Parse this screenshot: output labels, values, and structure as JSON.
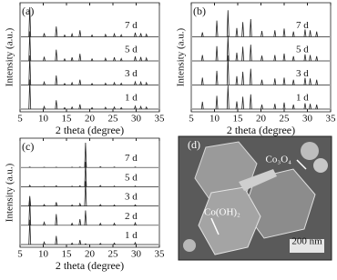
{
  "chart_data": [
    {
      "type": "line",
      "panel_label": "(a)",
      "xlabel": "2 theta (degree)",
      "ylabel": "Intensity (a.u.)",
      "xlim": [
        5,
        35
      ],
      "xticks": [
        5,
        10,
        15,
        20,
        25,
        30,
        35
      ],
      "ylim": [
        0,
        100
      ],
      "x": [
        7.1,
        10.2,
        12.8,
        14.6,
        16.2,
        17.9,
        20.5,
        23.4,
        25.3,
        26.8,
        29.8,
        31.0,
        32.2
      ],
      "series": [
        {
          "name": "7 d",
          "color": "#222",
          "values": [
            100,
            12,
            35,
            6,
            10,
            22,
            6,
            8,
            10,
            7,
            14,
            12,
            9
          ]
        },
        {
          "name": "5 d",
          "color": "#222",
          "values": [
            100,
            14,
            38,
            7,
            12,
            24,
            7,
            9,
            12,
            8,
            15,
            13,
            10
          ]
        },
        {
          "name": "3 d",
          "color": "#222",
          "values": [
            100,
            10,
            32,
            5,
            8,
            18,
            5,
            6,
            8,
            6,
            11,
            10,
            8
          ]
        },
        {
          "name": "1 d",
          "color": "#222",
          "values": [
            100,
            9,
            30,
            5,
            7,
            16,
            5,
            6,
            7,
            5,
            10,
            9,
            7
          ]
        }
      ]
    },
    {
      "type": "line",
      "panel_label": "(b)",
      "xlabel": "2 theta (degree)",
      "ylabel": "Intensity (a.u.)",
      "xlim": [
        5,
        35
      ],
      "xticks": [
        5,
        10,
        15,
        20,
        25,
        30,
        35
      ],
      "ylim": [
        0,
        100
      ],
      "x": [
        7.4,
        10.5,
        12.9,
        14.8,
        16.1,
        17.8,
        20.2,
        23.0,
        25.0,
        27.0,
        29.5,
        30.6,
        32.0
      ],
      "series": [
        {
          "name": "7 d",
          "color": "#222",
          "values": [
            15,
            55,
            90,
            30,
            50,
            60,
            20,
            22,
            28,
            18,
            25,
            22,
            18
          ]
        },
        {
          "name": "5 d",
          "color": "#222",
          "values": [
            20,
            50,
            85,
            28,
            48,
            55,
            18,
            20,
            25,
            16,
            22,
            20,
            16
          ]
        },
        {
          "name": "3 d",
          "color": "#222",
          "values": [
            25,
            48,
            100,
            30,
            45,
            55,
            18,
            22,
            25,
            18,
            24,
            22,
            18
          ]
        },
        {
          "name": "1 d",
          "color": "#222",
          "values": [
            25,
            45,
            80,
            26,
            42,
            50,
            15,
            18,
            22,
            15,
            20,
            18,
            15
          ]
        }
      ]
    },
    {
      "type": "line",
      "panel_label": "(c)",
      "xlabel": "2 theta (degree)",
      "ylabel": "Intensity (a.u.)",
      "xlim": [
        5,
        35
      ],
      "xticks": [
        5,
        10,
        15,
        20,
        25,
        30,
        35
      ],
      "ylim": [
        0,
        100
      ],
      "x": [
        7.1,
        10.2,
        12.8,
        16.2,
        17.9,
        19.1,
        22.3,
        25.3,
        29.8
      ],
      "series": [
        {
          "name": "7 d",
          "color": "#222",
          "values": [
            2,
            1,
            1,
            1,
            2,
            100,
            3,
            2,
            2
          ]
        },
        {
          "name": "5 d",
          "color": "#222",
          "values": [
            6,
            2,
            4,
            2,
            4,
            100,
            5,
            3,
            3
          ]
        },
        {
          "name": "3 d",
          "color": "#222",
          "values": [
            40,
            6,
            15,
            4,
            10,
            100,
            6,
            4,
            5
          ]
        },
        {
          "name": "2 d",
          "color": "#222",
          "values": [
            100,
            12,
            45,
            8,
            25,
            60,
            8,
            8,
            10
          ]
        },
        {
          "name": "1 d",
          "color": "#222",
          "values": [
            100,
            10,
            35,
            6,
            18,
            3,
            5,
            6,
            8
          ]
        }
      ]
    }
  ],
  "image": {
    "panel_label": "(d)",
    "labels": [
      "Co₃O₄",
      "Co(OH)₂",
      "200 nm"
    ]
  }
}
